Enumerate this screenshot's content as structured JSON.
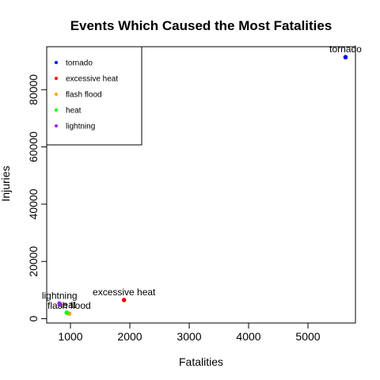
{
  "chart_data": {
    "type": "scatter",
    "title": "Events Which Caused the Most Fatalities",
    "xlabel": "Fatalities",
    "ylabel": "Injuries",
    "xlim": [
      600,
      5800
    ],
    "ylim": [
      -1500,
      95000
    ],
    "x_ticks": [
      "1000",
      "2000",
      "3000",
      "4000",
      "5000"
    ],
    "y_ticks": [
      "0",
      "20000",
      "40000",
      "60000",
      "80000"
    ],
    "x_tick_values": [
      1000,
      2000,
      3000,
      4000,
      5000
    ],
    "y_tick_values": [
      0,
      20000,
      40000,
      60000,
      80000
    ],
    "grid": false,
    "legend_position": "top-left",
    "legend": [
      {
        "label": "tornado",
        "color": "#0000ff"
      },
      {
        "label": "excessive heat",
        "color": "#ff0000"
      },
      {
        "label": "flash flood",
        "color": "#ffa500"
      },
      {
        "label": "heat",
        "color": "#00ff00"
      },
      {
        "label": "lightning",
        "color": "#a020f0"
      }
    ],
    "points": [
      {
        "name": "tornado",
        "x": 5633,
        "y": 91346,
        "color": "#0000ff",
        "label": "tornado"
      },
      {
        "name": "excessive heat",
        "x": 1903,
        "y": 6525,
        "color": "#ff0000",
        "label": "excessive heat"
      },
      {
        "name": "flash flood",
        "x": 978,
        "y": 1777,
        "color": "#ffa500",
        "label": "flash flood"
      },
      {
        "name": "heat",
        "x": 937,
        "y": 2100,
        "color": "#00ff00",
        "label": "heat"
      },
      {
        "name": "lightning",
        "x": 816,
        "y": 5230,
        "color": "#a020f0",
        "label": "lightning"
      }
    ]
  }
}
